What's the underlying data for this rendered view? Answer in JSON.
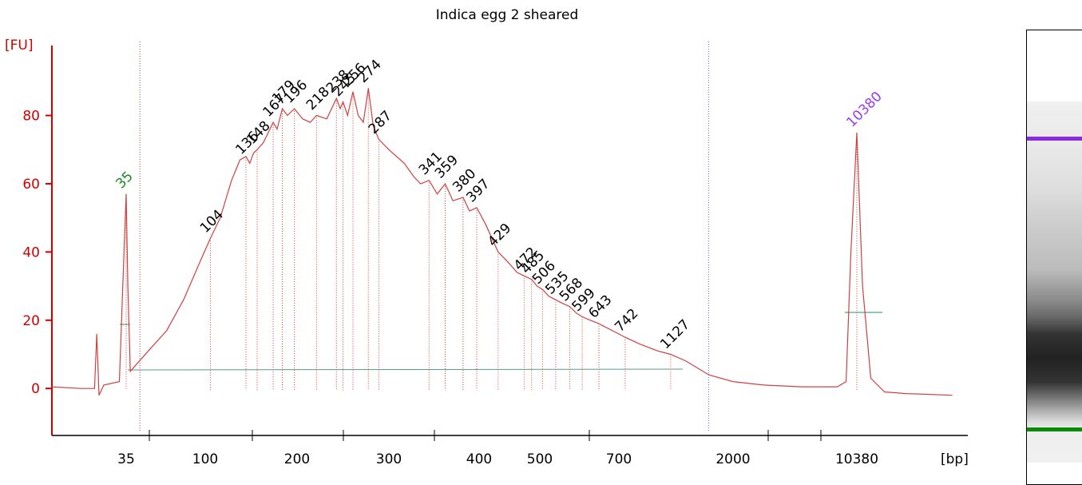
{
  "chart_data": {
    "type": "line",
    "title": "Indica egg 2 sheared",
    "y_label": "[FU]",
    "x_label": "[bp]",
    "ylim": [
      -12.6,
      100.5
    ],
    "yticks": [
      0,
      20,
      40,
      60,
      80
    ],
    "xticks": [
      35,
      100,
      200,
      300,
      400,
      500,
      700,
      2000,
      10380
    ],
    "x_log_interpolated": true,
    "trace": {
      "color": "#d04040",
      "x": [
        13,
        19,
        23,
        23.7,
        24.4,
        26,
        32,
        34,
        35,
        35.8,
        37,
        40,
        47,
        60,
        75,
        93,
        104,
        112,
        122,
        130,
        136,
        140,
        144,
        148,
        155,
        161,
        167,
        172,
        179,
        186,
        196,
        205,
        212,
        218,
        228,
        238,
        242,
        245,
        250,
        256,
        262,
        268,
        274,
        280,
        287,
        300,
        315,
        325,
        332,
        341,
        350,
        359,
        368,
        380,
        388,
        397,
        410,
        429,
        445,
        460,
        472,
        485,
        495,
        506,
        520,
        535,
        550,
        568,
        585,
        599,
        620,
        643,
        680,
        742,
        850,
        1000,
        1127,
        1300,
        1600,
        2000,
        3000,
        5000,
        8000,
        9000,
        9600,
        10380,
        11200,
        12500,
        15000,
        20000,
        37000
      ],
      "values": [
        0.5,
        0,
        0,
        16,
        -2,
        1,
        2,
        40,
        57,
        30,
        5,
        7,
        11,
        17,
        26,
        37,
        44,
        50,
        61,
        67,
        68,
        66,
        69,
        70,
        72,
        75,
        78,
        76,
        82,
        80,
        82,
        79,
        78,
        80,
        79,
        85,
        82,
        84,
        80,
        87,
        80,
        78,
        88,
        77,
        73,
        70,
        66,
        62,
        60,
        61,
        57,
        60,
        55,
        56,
        52,
        53,
        48,
        40,
        37,
        34,
        33,
        32,
        30,
        29,
        27,
        26,
        25,
        24,
        22,
        21,
        20,
        19,
        17,
        15,
        13,
        11,
        10,
        8,
        4,
        2,
        1,
        0.5,
        0.5,
        2,
        40,
        75,
        30,
        3,
        -1,
        -1.5,
        -2
      ]
    },
    "peaks": {
      "x": [
        35,
        104,
        136,
        148,
        167,
        179,
        196,
        218,
        238,
        245,
        256,
        274,
        287,
        341,
        359,
        380,
        397,
        429,
        472,
        485,
        506,
        535,
        568,
        599,
        643,
        742,
        1127,
        10380
      ],
      "values": [
        57,
        44,
        67,
        70,
        78,
        82,
        82,
        80,
        85,
        84,
        87,
        88,
        73,
        61,
        60,
        56,
        53,
        40,
        33,
        32,
        29,
        26,
        24,
        21,
        19,
        15,
        10,
        75
      ],
      "colors": [
        "#1a8a1a",
        "#000000",
        "#000000",
        "#000000",
        "#000000",
        "#000000",
        "#000000",
        "#000000",
        "#000000",
        "#000000",
        "#000000",
        "#000000",
        "#000000",
        "#000000",
        "#000000",
        "#000000",
        "#000000",
        "#000000",
        "#000000",
        "#000000",
        "#000000",
        "#000000",
        "#000000",
        "#000000",
        "#000000",
        "#000000",
        "#000000",
        "#9a3cf0"
      ]
    },
    "region_bounds": [
      42,
      1600
    ]
  }
}
